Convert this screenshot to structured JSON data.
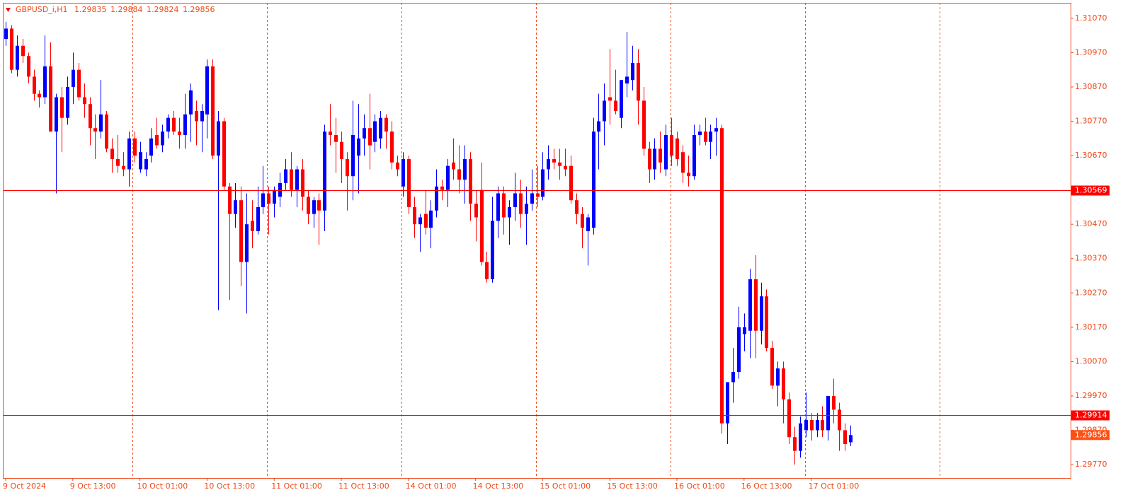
{
  "chart_data": {
    "type": "candlestick",
    "symbol": "GBPUSD_i,H1",
    "up_color": "#0000ff",
    "down_color": "#ff0000",
    "axis_color": "#f04a19",
    "hline_color": "#ff0000",
    "price_color": "#ff4f14",
    "grid": true,
    "ylim": [
      1.29731,
      1.31115
    ],
    "yticks": [
      {
        "value": 1.3107,
        "label": "1.31070"
      },
      {
        "value": 1.3097,
        "label": "1.30970"
      },
      {
        "value": 1.3087,
        "label": "1.30870"
      },
      {
        "value": 1.3077,
        "label": "1.30770"
      },
      {
        "value": 1.3067,
        "label": "1.30670"
      },
      {
        "value": 1.3047,
        "label": "1.30470"
      },
      {
        "value": 1.3037,
        "label": "1.30370"
      },
      {
        "value": 1.3027,
        "label": "1.30270"
      },
      {
        "value": 1.3017,
        "label": "1.30170"
      },
      {
        "value": 1.3007,
        "label": "1.30070"
      },
      {
        "value": 1.2997,
        "label": "1.29970"
      },
      {
        "value": 1.2987,
        "label": "1.29870"
      },
      {
        "value": 1.2977,
        "label": "1.29770"
      }
    ],
    "hlines": [
      1.30569,
      1.29914
    ],
    "categories": [
      "9 Oct 2024",
      null,
      null,
      null,
      null,
      null,
      null,
      null,
      null,
      null,
      null,
      null,
      "9 Oct 13:00",
      null,
      null,
      null,
      null,
      null,
      null,
      null,
      null,
      null,
      null,
      null,
      "10 Oct 01:00",
      null,
      null,
      null,
      null,
      null,
      null,
      null,
      null,
      null,
      null,
      null,
      "10 Oct 13:00",
      null,
      null,
      null,
      null,
      null,
      null,
      null,
      null,
      null,
      null,
      null,
      "11 Oct 01:00",
      null,
      null,
      null,
      null,
      null,
      null,
      null,
      null,
      null,
      null,
      null,
      "11 Oct 13:00",
      null,
      null,
      null,
      null,
      null,
      null,
      null,
      null,
      null,
      null,
      null,
      "14 Oct 01:00",
      null,
      null,
      null,
      null,
      null,
      null,
      null,
      null,
      null,
      null,
      null,
      "14 Oct 13:00",
      null,
      null,
      null,
      null,
      null,
      null,
      null,
      null,
      null,
      null,
      null,
      "15 Oct 01:00",
      null,
      null,
      null,
      null,
      null,
      null,
      null,
      null,
      null,
      null,
      null,
      "15 Oct 13:00",
      null,
      null,
      null,
      null,
      null,
      null,
      null,
      null,
      null,
      null,
      null,
      "16 Oct 01:00",
      null,
      null,
      null,
      null,
      null,
      null,
      null,
      null,
      null,
      null,
      null,
      "16 Oct 13:00",
      null,
      null,
      null,
      null,
      null,
      null,
      null,
      null,
      null,
      null,
      null,
      "17 Oct 01:00",
      null,
      null,
      null,
      null,
      null,
      null,
      null
    ],
    "open": [
      1.3101,
      1.3104,
      1.3092,
      1.3099,
      1.3096,
      1.309,
      1.3085,
      1.3084,
      1.3093,
      1.3074,
      1.3084,
      1.3078,
      1.3087,
      1.3092,
      1.3084,
      1.3082,
      1.3075,
      1.3074,
      1.3079,
      1.3069,
      1.3066,
      1.3064,
      1.3063,
      1.3072,
      1.3063,
      1.3063,
      1.3067,
      1.3073,
      1.307,
      1.3074,
      1.3078,
      1.3074,
      1.3073,
      1.3079,
      1.308,
      1.3077,
      1.3079,
      1.3093,
      1.3067,
      1.3077,
      1.3058,
      1.305,
      1.3054,
      1.3036,
      1.3048,
      1.3045,
      1.3052,
      1.3056,
      1.3053,
      1.3055,
      1.3059,
      1.3063,
      1.3057,
      1.3063,
      1.3055,
      1.305,
      1.3054,
      1.3051,
      1.3074,
      1.3073,
      1.3071,
      1.3066,
      1.3061,
      1.3067,
      1.3072,
      1.3075,
      1.3071,
      1.3072,
      1.3078,
      1.3074,
      1.3065,
      1.3058,
      1.3066,
      1.3052,
      1.3047,
      1.305,
      1.3046,
      1.3051,
      1.3058,
      1.3057,
      1.3065,
      1.3063,
      1.306,
      1.3066,
      1.3053,
      1.3057,
      1.3036,
      1.3031,
      1.3048,
      1.3056,
      1.3049,
      1.3052,
      1.3056,
      1.305,
      1.3053,
      1.3056,
      1.3055,
      1.3063,
      1.3066,
      1.3065,
      1.3064,
      1.3064,
      1.3054,
      1.305,
      1.3045,
      1.3046,
      1.3074,
      1.3077,
      1.3084,
      1.3083,
      1.3078,
      1.3088,
      1.3089,
      1.3094,
      1.3083,
      1.3069,
      1.3063,
      1.3069,
      1.3063,
      1.3073,
      1.3072,
      1.3068,
      1.3062,
      1.3061,
      1.3073,
      1.3074,
      1.3071,
      1.3074,
      1.3075,
      1.2989,
      1.3001,
      1.3004,
      1.3015,
      1.3016,
      1.3031,
      1.3016,
      1.3026,
      1.3011,
      1.3,
      1.3005,
      1.2996,
      1.2985,
      1.2981,
      1.2987,
      1.299,
      1.2987,
      1.299,
      1.2987,
      1.2997,
      1.2993,
      1.2987,
      1.29835
    ],
    "high": [
      1.3106,
      1.3105,
      1.3102,
      1.3101,
      1.3097,
      1.3092,
      1.3086,
      1.3102,
      1.31,
      1.3085,
      1.3087,
      1.309,
      1.3097,
      1.3094,
      1.3088,
      1.3084,
      1.3079,
      1.3089,
      1.308,
      1.3072,
      1.3073,
      1.3068,
      1.3074,
      1.3074,
      1.3071,
      1.3068,
      1.3075,
      1.3078,
      1.3076,
      1.3079,
      1.308,
      1.3078,
      1.3085,
      1.3088,
      1.3083,
      1.3082,
      1.3095,
      1.3095,
      1.308,
      1.3078,
      1.3059,
      1.3059,
      1.3058,
      1.3056,
      1.3054,
      1.3058,
      1.3064,
      1.3058,
      1.3058,
      1.3062,
      1.3066,
      1.3068,
      1.3064,
      1.3066,
      1.3057,
      1.3055,
      1.3056,
      1.3076,
      1.3082,
      1.3078,
      1.3074,
      1.3068,
      1.3083,
      1.3082,
      1.3079,
      1.3085,
      1.3079,
      1.308,
      1.3079,
      1.3077,
      1.3067,
      1.3068,
      1.3067,
      1.3055,
      1.305,
      1.3057,
      1.3054,
      1.3063,
      1.306,
      1.3066,
      1.3072,
      1.307,
      1.307,
      1.3068,
      1.3057,
      1.3065,
      1.3039,
      1.3055,
      1.3058,
      1.3058,
      1.3054,
      1.3062,
      1.306,
      1.3058,
      1.3063,
      1.3064,
      1.3068,
      1.307,
      1.3069,
      1.3069,
      1.3069,
      1.3067,
      1.3056,
      1.3052,
      1.305,
      1.3078,
      1.3085,
      1.3088,
      1.3098,
      1.3092,
      1.3089,
      1.3103,
      1.3099,
      1.3098,
      1.3087,
      1.3071,
      1.3072,
      1.3074,
      1.3076,
      1.3078,
      1.3074,
      1.307,
      1.3067,
      1.3076,
      1.3076,
      1.3078,
      1.3076,
      1.3078,
      1.3076,
      1.3001,
      1.3011,
      1.3023,
      1.3021,
      1.3034,
      1.3038,
      1.303,
      1.3028,
      1.3013,
      1.3007,
      1.3007,
      1.2998,
      1.2988,
      1.2991,
      1.2998,
      1.2992,
      1.2992,
      1.2994,
      1.2997,
      1.3002,
      1.2995,
      1.2989,
      1.29884
    ],
    "low": [
      1.3099,
      1.3091,
      1.309,
      1.3094,
      1.3088,
      1.3083,
      1.3081,
      1.3082,
      1.3074,
      1.3056,
      1.3068,
      1.3076,
      1.3082,
      1.3083,
      1.3078,
      1.307,
      1.3066,
      1.3072,
      1.3068,
      1.3062,
      1.3062,
      1.3061,
      1.3058,
      1.3065,
      1.3062,
      1.3061,
      1.3065,
      1.3069,
      1.3068,
      1.3072,
      1.3073,
      1.3069,
      1.3069,
      1.3071,
      1.307,
      1.3068,
      1.3072,
      1.3066,
      1.3022,
      1.3057,
      1.3025,
      1.3046,
      1.3029,
      1.3021,
      1.304,
      1.3044,
      1.305,
      1.3044,
      1.3049,
      1.3052,
      1.3057,
      1.3055,
      1.3052,
      1.3051,
      1.3047,
      1.3046,
      1.3041,
      1.3045,
      1.307,
      1.3062,
      1.3059,
      1.3051,
      1.3054,
      1.3056,
      1.3067,
      1.3063,
      1.3068,
      1.3069,
      1.3069,
      1.3063,
      1.3061,
      1.3055,
      1.305,
      1.3043,
      1.3039,
      1.3044,
      1.304,
      1.3049,
      1.3054,
      1.3052,
      1.306,
      1.3056,
      1.3053,
      1.3048,
      1.3042,
      1.3035,
      1.303,
      1.303,
      1.3043,
      1.3044,
      1.3041,
      1.3048,
      1.3046,
      1.3041,
      1.3051,
      1.3052,
      1.3054,
      1.306,
      1.3063,
      1.306,
      1.3061,
      1.3053,
      1.3047,
      1.304,
      1.3035,
      1.3044,
      1.3063,
      1.307,
      1.3076,
      1.3079,
      1.3075,
      1.3084,
      1.3086,
      1.3076,
      1.3067,
      1.3059,
      1.306,
      1.3062,
      1.3061,
      1.3064,
      1.3064,
      1.3059,
      1.3058,
      1.306,
      1.307,
      1.307,
      1.3066,
      1.3067,
      1.2986,
      1.2983,
      1.2995,
      1.3002,
      1.301,
      1.3008,
      1.3008,
      1.3012,
      1.301,
      1.2999,
      1.2994,
      1.2989,
      1.2983,
      1.2977,
      1.2979,
      1.2985,
      1.2984,
      1.2985,
      1.2985,
      1.2984,
      1.2989,
      1.2981,
      1.2981,
      1.29824
    ],
    "close": [
      1.3104,
      1.3092,
      1.3099,
      1.3096,
      1.309,
      1.3085,
      1.3084,
      1.3093,
      1.3074,
      1.3084,
      1.3078,
      1.3087,
      1.3092,
      1.3084,
      1.3082,
      1.3075,
      1.3074,
      1.3079,
      1.3069,
      1.3066,
      1.3064,
      1.3063,
      1.3072,
      1.3067,
      1.3068,
      1.3066,
      1.3072,
      1.307,
      1.3074,
      1.3078,
      1.3074,
      1.3073,
      1.3079,
      1.3086,
      1.3077,
      1.308,
      1.3093,
      1.3067,
      1.3077,
      1.3058,
      1.305,
      1.3054,
      1.3036,
      1.3047,
      1.3045,
      1.3052,
      1.3056,
      1.3053,
      1.3057,
      1.3059,
      1.3063,
      1.3057,
      1.3063,
      1.3055,
      1.305,
      1.3054,
      1.3051,
      1.3074,
      1.3073,
      1.3071,
      1.3066,
      1.3061,
      1.3073,
      1.3072,
      1.3075,
      1.307,
      1.3077,
      1.3078,
      1.3074,
      1.3065,
      1.3063,
      1.3066,
      1.3052,
      1.3047,
      1.3049,
      1.3046,
      1.3051,
      1.3058,
      1.3057,
      1.3064,
      1.3063,
      1.306,
      1.3066,
      1.3053,
      1.3049,
      1.3036,
      1.3031,
      1.3048,
      1.3056,
      1.3049,
      1.3052,
      1.3056,
      1.305,
      1.3053,
      1.3056,
      1.3055,
      1.3063,
      1.3066,
      1.3065,
      1.3064,
      1.3063,
      1.3054,
      1.305,
      1.3046,
      1.3049,
      1.3074,
      1.3077,
      1.3083,
      1.3083,
      1.308,
      1.3089,
      1.309,
      1.3094,
      1.3083,
      1.3069,
      1.3063,
      1.3069,
      1.3065,
      1.3073,
      1.3067,
      1.3066,
      1.3062,
      1.3061,
      1.3073,
      1.3074,
      1.3071,
      1.3074,
      1.3075,
      1.2989,
      1.3001,
      1.3004,
      1.3017,
      1.3017,
      1.3031,
      1.3016,
      1.3026,
      1.3011,
      1.3,
      1.3005,
      1.2996,
      1.2985,
      1.2981,
      1.2989,
      1.299,
      1.2987,
      1.299,
      1.2987,
      1.2997,
      1.2993,
      1.2987,
      1.2983,
      1.29856
    ]
  }
}
